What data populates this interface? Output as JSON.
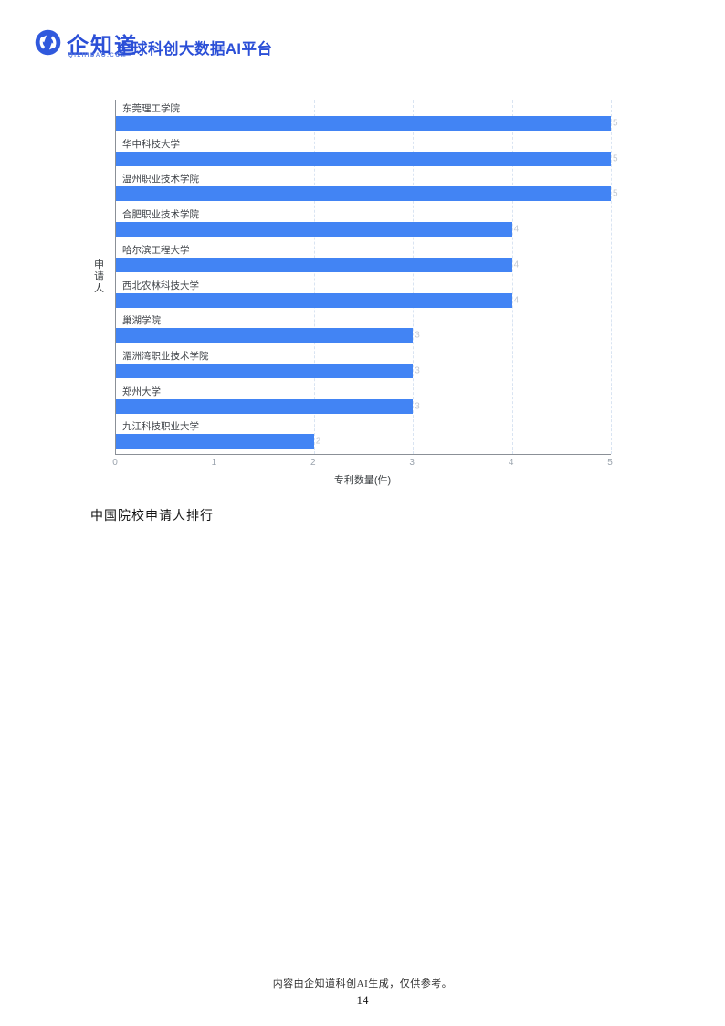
{
  "page": {
    "header": {
      "brand_name": "企知道",
      "brand_domain": "QIZHIDAO.COM",
      "tagline": "全球科创大数据AI平台"
    },
    "caption": "中国院校申请人排行",
    "footer": {
      "disclaimer": "内容由企知道科创AI生成，仅供参考。",
      "page_number": "14"
    },
    "colors": {
      "brand_blue": "#2b4fd7",
      "bar_blue": "#4284f4",
      "gridline": "#d9e4f2",
      "axis_line": "#8b9097",
      "tick_label": "#9aa3ad",
      "category_label": "#3f4348",
      "value_label": "#c4cad3"
    }
  },
  "chart_data": {
    "type": "bar",
    "orientation": "horizontal",
    "title": "",
    "categories": [
      "东莞理工学院",
      "华中科技大学",
      "温州职业技术学院",
      "合肥职业技术学院",
      "哈尔滨工程大学",
      "西北农林科技大学",
      "巢湖学院",
      "湄洲湾职业技术学院",
      "郑州大学",
      "九江科技职业大学"
    ],
    "values": [
      5,
      5,
      5,
      4,
      4,
      4,
      3,
      3,
      3,
      2
    ],
    "xlabel": "专利数量(件)",
    "ylabel": "申请人",
    "xlim": [
      0,
      5
    ],
    "xticks": [
      0,
      1,
      2,
      3,
      4,
      5
    ],
    "grid": "vertical-dashed",
    "legend": "none"
  }
}
